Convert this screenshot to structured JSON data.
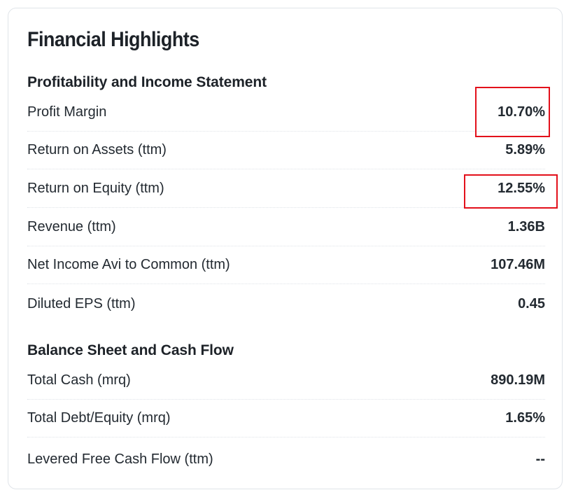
{
  "title": "Financial Highlights",
  "sections": [
    {
      "title": "Profitability and Income Statement",
      "rows": [
        {
          "label": "Profit Margin",
          "value": "10.70%"
        },
        {
          "label": "Return on Assets (ttm)",
          "value": "5.89%"
        },
        {
          "label": "Return on Equity (ttm)",
          "value": "12.55%"
        },
        {
          "label": "Revenue (ttm)",
          "value": "1.36B"
        },
        {
          "label": "Net Income Avi to Common (ttm)",
          "value": "107.46M"
        },
        {
          "label": "Diluted EPS (ttm)",
          "value": "0.45"
        }
      ]
    },
    {
      "title": "Balance Sheet and Cash Flow",
      "rows": [
        {
          "label": "Total Cash (mrq)",
          "value": "890.19M"
        },
        {
          "label": "Total Debt/Equity (mrq)",
          "value": "1.65%"
        },
        {
          "label": "Levered Free Cash Flow (ttm)",
          "value": "--"
        }
      ]
    }
  ],
  "highlight_color": "#e3101b"
}
